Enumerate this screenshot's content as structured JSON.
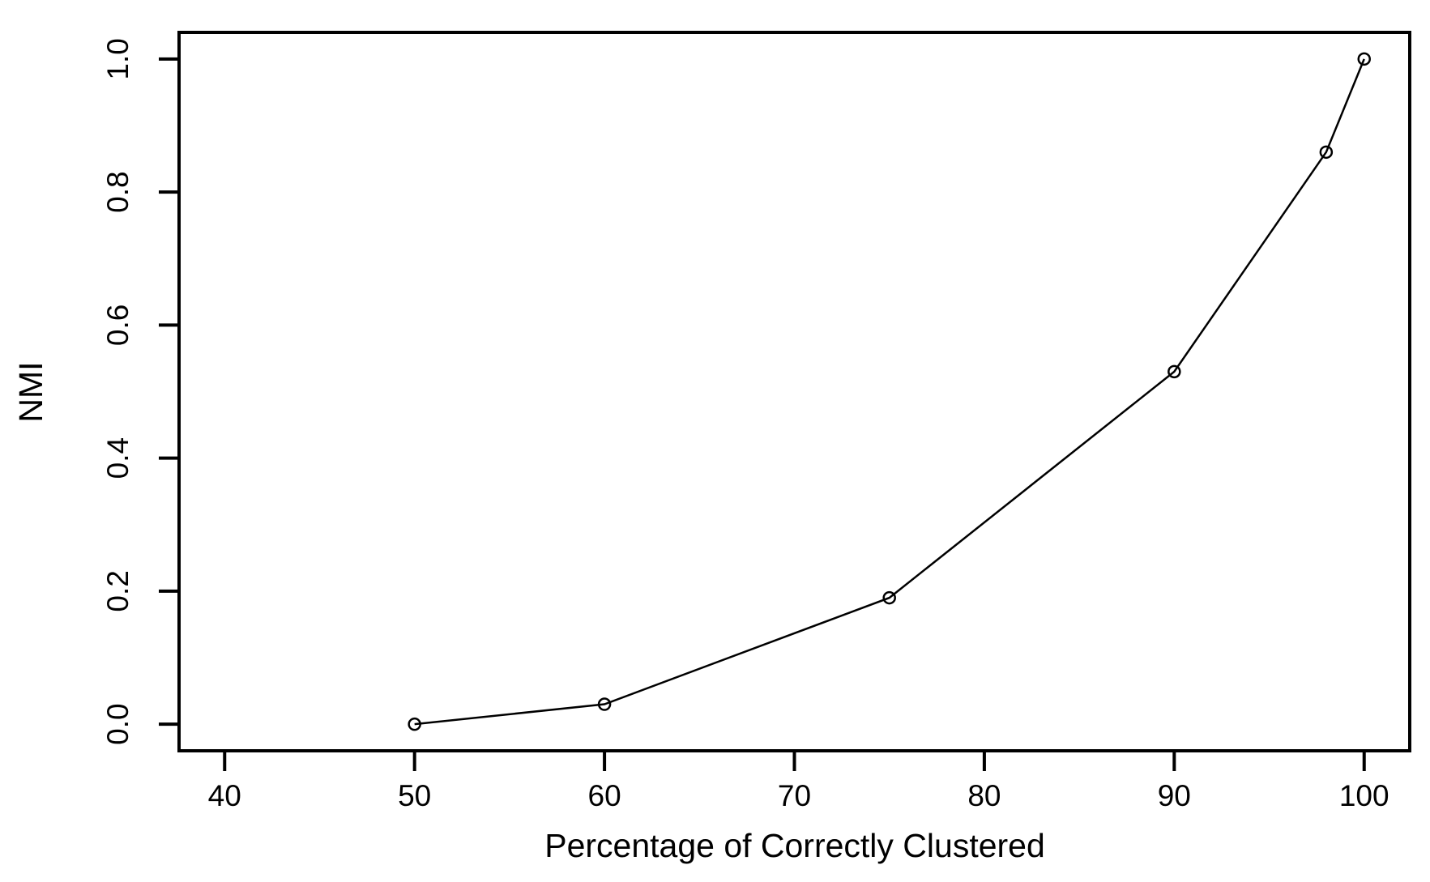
{
  "chart_data": {
    "type": "line",
    "title": "",
    "xlabel": "Percentage of Correctly Clustered",
    "ylabel": "NMI",
    "series": [
      {
        "name": "NMI",
        "x": [
          50,
          60,
          75,
          90,
          98,
          100
        ],
        "y": [
          0.0,
          0.03,
          0.19,
          0.53,
          0.86,
          1.0
        ]
      }
    ],
    "x_ticks": [
      "40",
      "50",
      "60",
      "70",
      "80",
      "90",
      "100"
    ],
    "x_tick_values": [
      40,
      50,
      60,
      70,
      80,
      90,
      100
    ],
    "y_ticks": [
      "0.0",
      "0.2",
      "0.4",
      "0.6",
      "0.8",
      "1.0"
    ],
    "y_tick_values": [
      0.0,
      0.2,
      0.4,
      0.6,
      0.8,
      1.0
    ],
    "xlim": [
      37.6,
      102.4
    ],
    "ylim": [
      -0.04,
      1.04
    ],
    "grid": false,
    "legend_position": "none",
    "marker": "open-circle",
    "line_style": "solid",
    "ink_color": "#000000",
    "background_color": "#ffffff"
  }
}
